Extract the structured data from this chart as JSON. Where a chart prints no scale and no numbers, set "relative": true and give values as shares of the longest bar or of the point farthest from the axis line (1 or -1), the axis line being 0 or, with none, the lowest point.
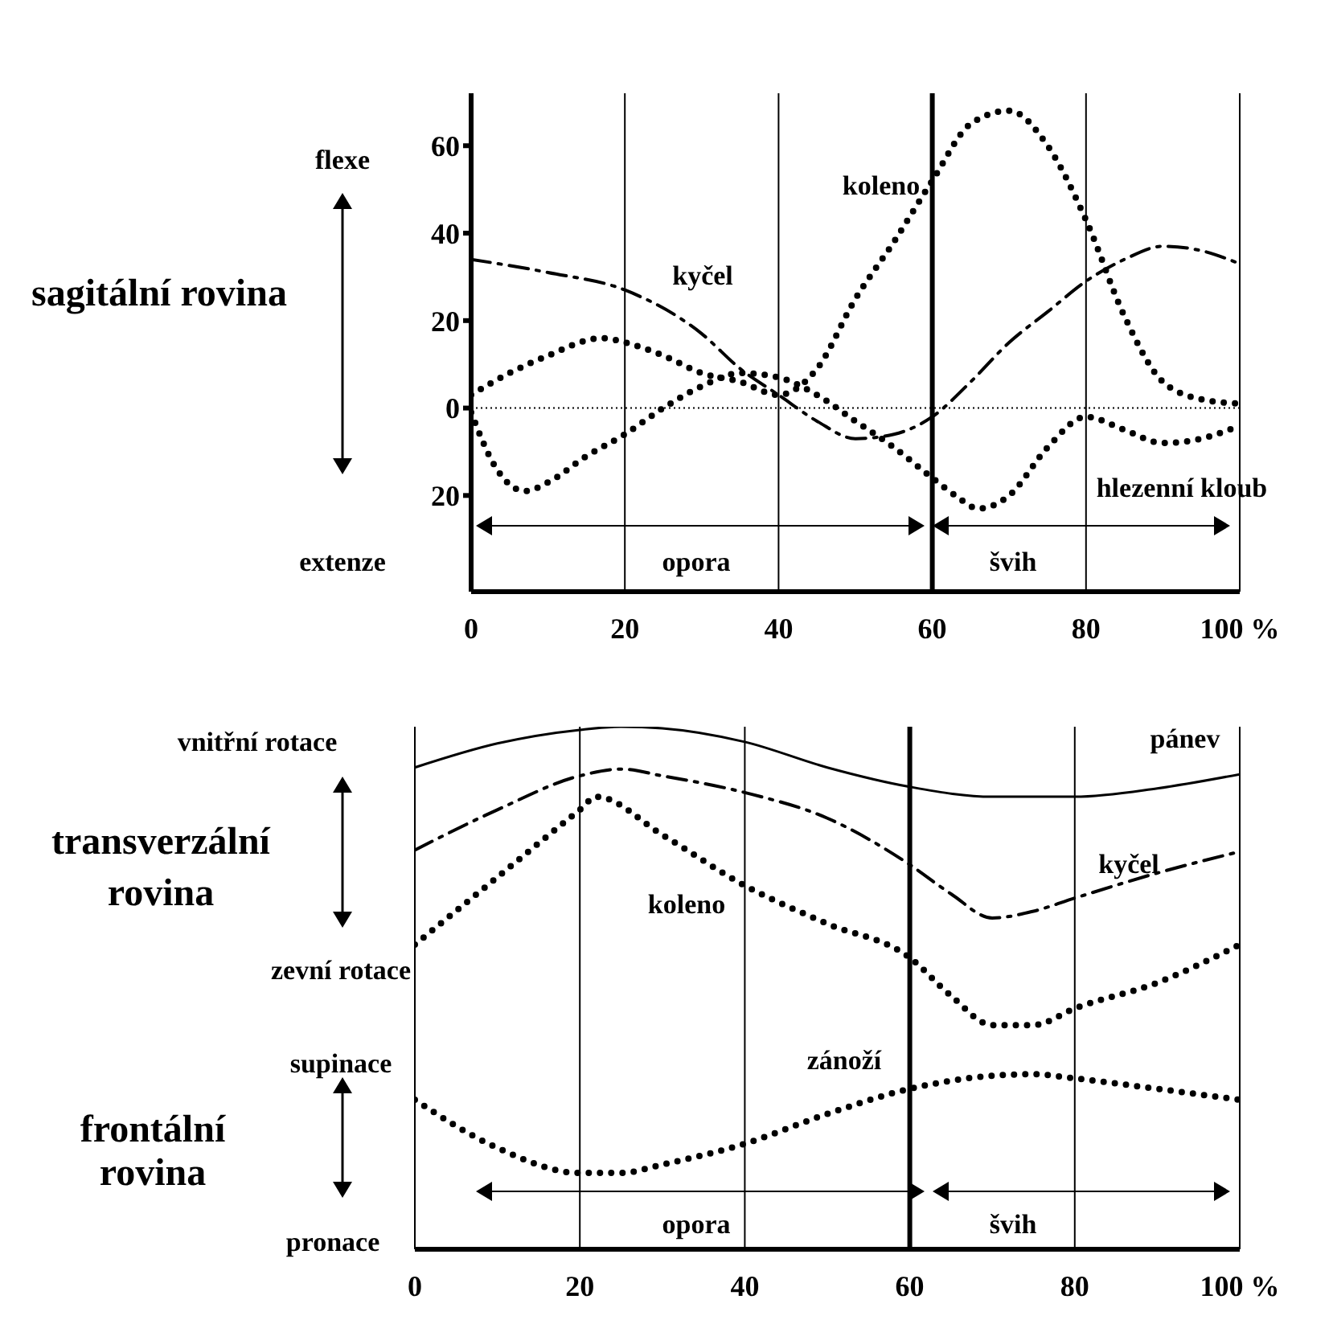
{
  "chart_data": [
    {
      "type": "line",
      "ylabel": "sagitální rovina",
      "xlim": [
        0,
        100
      ],
      "xticks": [
        0,
        20,
        40,
        60,
        80,
        {
          "value": 100,
          "label": "100 %"
        }
      ],
      "ylim": [
        -42,
        72
      ],
      "yticks": [
        {
          "value": -20,
          "label": "20"
        },
        0,
        20,
        40,
        60
      ],
      "grid": "x",
      "marker": "none",
      "annotations": [
        "flexe",
        "extenze",
        "opora",
        "švih"
      ],
      "ref_lines": [
        {
          "axis": "x",
          "value": 60,
          "line_style": "solid"
        },
        {
          "axis": "y",
          "value": 0,
          "line_style": "dotted"
        }
      ],
      "series": [
        {
          "name": "koleno",
          "color": "#000000",
          "line_style": "dotted",
          "x": [
            0,
            5,
            10,
            17,
            20,
            25,
            30,
            35,
            40,
            45,
            50,
            55,
            60,
            65,
            70,
            75,
            80,
            85,
            90,
            95,
            100
          ],
          "values": [
            3,
            8,
            12,
            16,
            15,
            12,
            8,
            6,
            3,
            9,
            25,
            38,
            52,
            65,
            68,
            60,
            43,
            21,
            6,
            2,
            1
          ]
        },
        {
          "name": "kyčel",
          "color": "#000000",
          "line_style": "dashed",
          "x": [
            0,
            10,
            20,
            30,
            35,
            40,
            45,
            50,
            55,
            60,
            65,
            70,
            75,
            80,
            85,
            90,
            95,
            100
          ],
          "values": [
            34,
            31,
            27,
            17,
            9,
            3,
            -3,
            -7,
            -6,
            -2,
            6,
            15,
            22,
            29,
            34,
            37,
            36,
            33
          ]
        },
        {
          "name": "hlezenní kloub",
          "color": "#000000",
          "line_style": "dotted",
          "x": [
            0,
            3,
            7,
            10,
            15,
            20,
            25,
            30,
            35,
            40,
            45,
            50,
            55,
            60,
            63,
            66,
            70,
            75,
            80,
            85,
            90,
            95,
            100
          ],
          "values": [
            -1,
            -13,
            -19,
            -17,
            -11,
            -6,
            0,
            5,
            8,
            7,
            3,
            -3,
            -9,
            -16,
            -20,
            -23,
            -20,
            -9,
            -2,
            -5,
            -8,
            -7,
            -4
          ]
        }
      ]
    },
    {
      "type": "line",
      "ylabel": "transverzální rovina",
      "relative": true,
      "xlim": [
        0,
        100
      ],
      "xticks": [
        0,
        20,
        40,
        60,
        80,
        {
          "value": 100,
          "label": "100 %"
        }
      ],
      "grid": "x",
      "marker": "none",
      "annotations": [
        "vnitřní rotace",
        "zevní rotace",
        "supinace",
        "pronace",
        "frontální rovina",
        "opora",
        "švih"
      ],
      "ref_lines": [
        {
          "axis": "x",
          "value": 60,
          "line_style": "solid"
        }
      ],
      "series": [
        {
          "name": "pánev",
          "color": "#000000",
          "line_style": "solid",
          "x": [
            0,
            10,
            20,
            25,
            30,
            40,
            50,
            60,
            70,
            80,
            90,
            100
          ],
          "values": [
            0.922,
            0.968,
            0.994,
            1,
            0.997,
            0.971,
            0.922,
            0.885,
            0.866,
            0.866,
            0.882,
            0.909
          ]
        },
        {
          "name": "kyčel",
          "color": "#000000",
          "line_style": "dashed",
          "x": [
            0,
            10,
            20,
            25,
            30,
            40,
            50,
            60,
            65,
            70,
            75,
            80,
            90,
            100
          ],
          "values": [
            0.764,
            0.841,
            0.906,
            0.919,
            0.906,
            0.874,
            0.825,
            0.736,
            0.68,
            0.634,
            0.647,
            0.672,
            0.72,
            0.761
          ]
        },
        {
          "name": "koleno",
          "color": "#000000",
          "line_style": "dotted",
          "x": [
            0,
            10,
            20,
            22,
            30,
            40,
            50,
            60,
            65,
            70,
            75,
            80,
            90,
            100
          ],
          "values": [
            0.583,
            0.712,
            0.841,
            0.866,
            0.793,
            0.696,
            0.623,
            0.558,
            0.485,
            0.429,
            0.429,
            0.461,
            0.51,
            0.583
          ]
        },
        {
          "name": "zánoží",
          "color": "#000000",
          "line_style": "dotted",
          "x": [
            0,
            10,
            20,
            25,
            30,
            40,
            50,
            60,
            70,
            75,
            80,
            90,
            100
          ],
          "values": [
            0.286,
            0.194,
            0.146,
            0.146,
            0.162,
            0.202,
            0.259,
            0.307,
            0.332,
            0.335,
            0.327,
            0.307,
            0.286
          ]
        }
      ]
    }
  ]
}
